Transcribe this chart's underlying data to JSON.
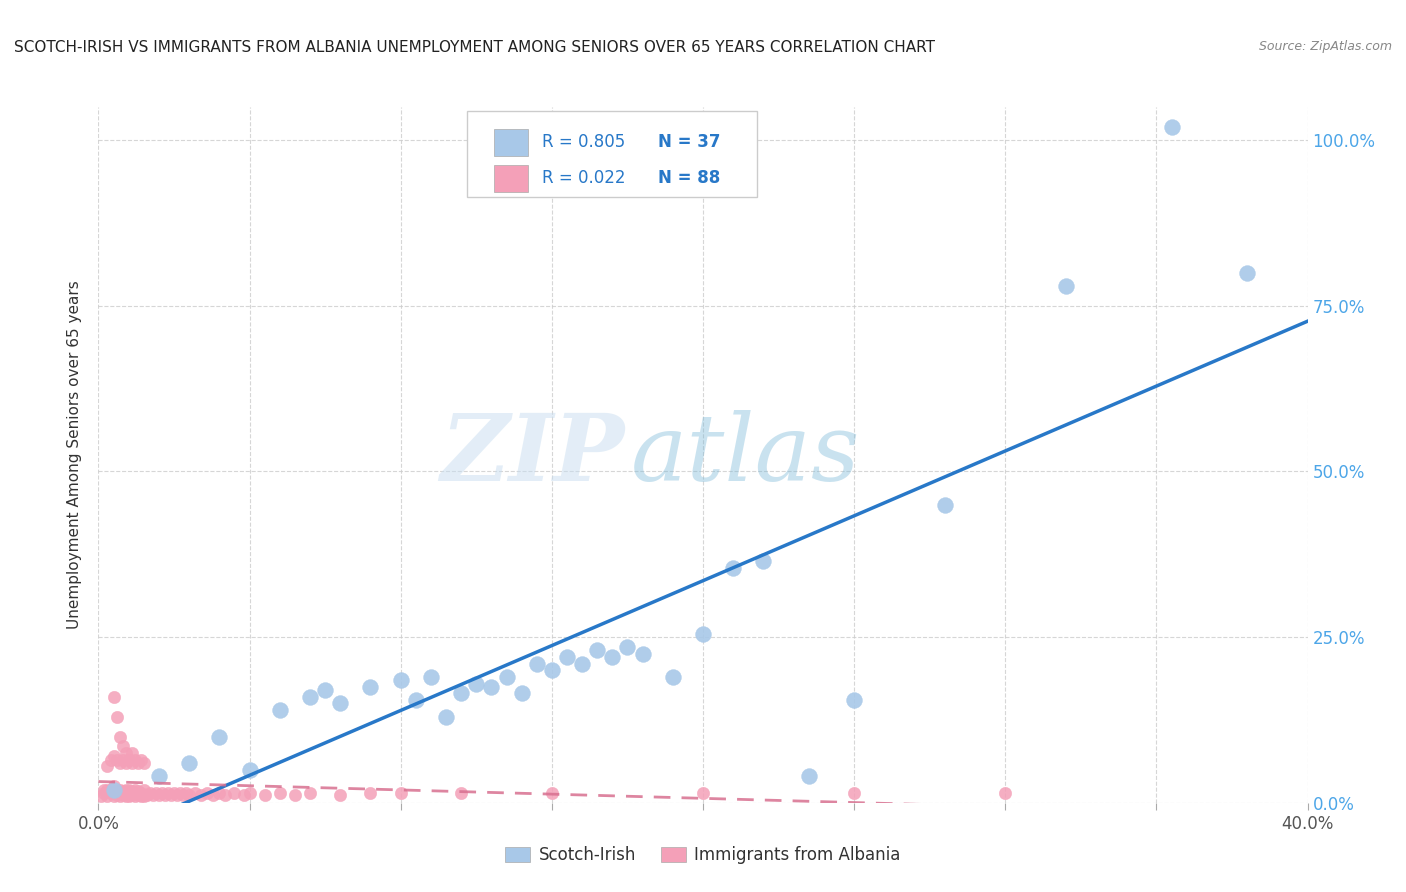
{
  "title": "SCOTCH-IRISH VS IMMIGRANTS FROM ALBANIA UNEMPLOYMENT AMONG SENIORS OVER 65 YEARS CORRELATION CHART",
  "source": "Source: ZipAtlas.com",
  "ylabel": "Unemployment Among Seniors over 65 years",
  "blue_label": "Scotch-Irish",
  "pink_label": "Immigrants from Albania",
  "blue_R": 0.805,
  "blue_N": 37,
  "pink_R": 0.022,
  "pink_N": 88,
  "xlim": [
    0.0,
    0.4
  ],
  "ylim": [
    0.0,
    1.05
  ],
  "yticks_right": [
    0.0,
    0.25,
    0.5,
    0.75,
    1.0
  ],
  "blue_color": "#a8c8e8",
  "blue_line_color": "#2878c8",
  "pink_color": "#f4a0b8",
  "pink_line_color": "#d87090",
  "background_color": "#ffffff",
  "grid_color": "#cccccc",
  "watermark_zip": "ZIP",
  "watermark_atlas": "atlas",
  "blue_x": [
    0.005,
    0.02,
    0.03,
    0.04,
    0.05,
    0.06,
    0.07,
    0.075,
    0.08,
    0.09,
    0.1,
    0.105,
    0.11,
    0.115,
    0.12,
    0.125,
    0.13,
    0.135,
    0.14,
    0.145,
    0.15,
    0.155,
    0.16,
    0.165,
    0.17,
    0.175,
    0.18,
    0.19,
    0.2,
    0.21,
    0.22,
    0.235,
    0.25,
    0.28,
    0.32,
    0.355,
    0.38
  ],
  "blue_y": [
    0.02,
    0.04,
    0.06,
    0.1,
    0.05,
    0.14,
    0.16,
    0.17,
    0.15,
    0.175,
    0.185,
    0.155,
    0.19,
    0.13,
    0.165,
    0.18,
    0.175,
    0.19,
    0.165,
    0.21,
    0.2,
    0.22,
    0.21,
    0.23,
    0.22,
    0.235,
    0.225,
    0.19,
    0.255,
    0.355,
    0.365,
    0.04,
    0.155,
    0.45,
    0.78,
    1.02,
    0.8
  ],
  "pink_x": [
    0.001,
    0.002,
    0.002,
    0.003,
    0.003,
    0.004,
    0.004,
    0.005,
    0.005,
    0.005,
    0.006,
    0.006,
    0.007,
    0.007,
    0.007,
    0.008,
    0.008,
    0.009,
    0.009,
    0.01,
    0.01,
    0.01,
    0.011,
    0.011,
    0.012,
    0.012,
    0.013,
    0.013,
    0.014,
    0.014,
    0.015,
    0.015,
    0.016,
    0.017,
    0.018,
    0.019,
    0.02,
    0.021,
    0.022,
    0.023,
    0.024,
    0.025,
    0.026,
    0.027,
    0.028,
    0.029,
    0.03,
    0.032,
    0.034,
    0.036,
    0.038,
    0.04,
    0.042,
    0.045,
    0.048,
    0.05,
    0.055,
    0.06,
    0.065,
    0.07,
    0.08,
    0.09,
    0.1,
    0.12,
    0.15,
    0.2,
    0.25,
    0.3,
    0.005,
    0.006,
    0.007,
    0.008,
    0.009,
    0.01,
    0.011,
    0.012,
    0.013,
    0.014,
    0.015,
    0.003,
    0.004,
    0.005,
    0.006,
    0.007,
    0.008,
    0.009,
    0.01,
    0.011
  ],
  "pink_y": [
    0.01,
    0.015,
    0.02,
    0.01,
    0.02,
    0.015,
    0.02,
    0.01,
    0.015,
    0.025,
    0.012,
    0.018,
    0.01,
    0.015,
    0.02,
    0.012,
    0.018,
    0.01,
    0.02,
    0.01,
    0.015,
    0.02,
    0.012,
    0.018,
    0.01,
    0.02,
    0.012,
    0.018,
    0.01,
    0.015,
    0.01,
    0.02,
    0.012,
    0.015,
    0.012,
    0.015,
    0.012,
    0.015,
    0.012,
    0.015,
    0.012,
    0.015,
    0.012,
    0.015,
    0.012,
    0.015,
    0.012,
    0.015,
    0.012,
    0.015,
    0.012,
    0.015,
    0.012,
    0.015,
    0.012,
    0.015,
    0.012,
    0.015,
    0.012,
    0.015,
    0.012,
    0.015,
    0.015,
    0.015,
    0.015,
    0.015,
    0.015,
    0.015,
    0.16,
    0.13,
    0.1,
    0.085,
    0.075,
    0.065,
    0.075,
    0.065,
    0.06,
    0.065,
    0.06,
    0.055,
    0.065,
    0.07,
    0.065,
    0.06,
    0.065,
    0.06,
    0.065,
    0.06
  ]
}
